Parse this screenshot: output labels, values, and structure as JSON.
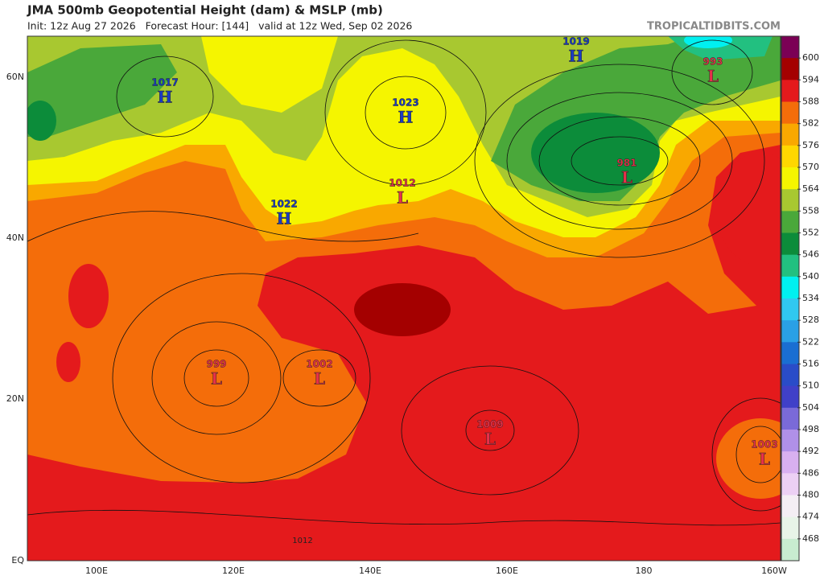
{
  "header": {
    "title": "JMA 500mb Geopotential Height (dam) & MSLP (mb)",
    "subtitle": "Init: 12z Aug 27 2026   Forecast Hour: [144]   valid at 12z Wed, Sep 02 2026",
    "site": "TROPICALTIDBITS.COM"
  },
  "map": {
    "lat_labels": [
      "60N",
      "40N",
      "20N",
      "EQ"
    ],
    "lon_labels": [
      "100E",
      "120E",
      "140E",
      "160E",
      "180",
      "160W"
    ],
    "centers": [
      {
        "type": "H",
        "value": "1017"
      },
      {
        "type": "H",
        "value": "1023"
      },
      {
        "type": "H",
        "value": "1019"
      },
      {
        "type": "H",
        "value": "1022"
      },
      {
        "type": "L",
        "value": "993"
      },
      {
        "type": "L",
        "value": "981"
      },
      {
        "type": "L",
        "value": "1012"
      },
      {
        "type": "L",
        "value": "999"
      },
      {
        "type": "L",
        "value": "1002"
      },
      {
        "type": "L",
        "value": "1009"
      },
      {
        "type": "L",
        "value": "1003"
      }
    ],
    "contour_labels": [
      "1012"
    ]
  },
  "colorbar": {
    "levels": [
      600,
      594,
      588,
      582,
      576,
      570,
      564,
      558,
      552,
      546,
      540,
      534,
      528,
      522,
      516,
      510,
      504,
      498,
      492,
      486,
      480,
      474,
      468
    ],
    "colors": [
      "#7b0055",
      "#a40000",
      "#e41a1c",
      "#f46d0a",
      "#f9a800",
      "#ffd700",
      "#f5f500",
      "#a8c830",
      "#4aa83a",
      "#0c8c3a",
      "#22c080",
      "#00f0f0",
      "#30c8f0",
      "#2aa0e6",
      "#1a6ed2",
      "#2a4cc8",
      "#4040c8",
      "#7a6ad8",
      "#b090e8",
      "#d8b0f0",
      "#ecd0f4",
      "#f4eef4",
      "#e8f4e8",
      "#c8ecd0"
    ]
  }
}
